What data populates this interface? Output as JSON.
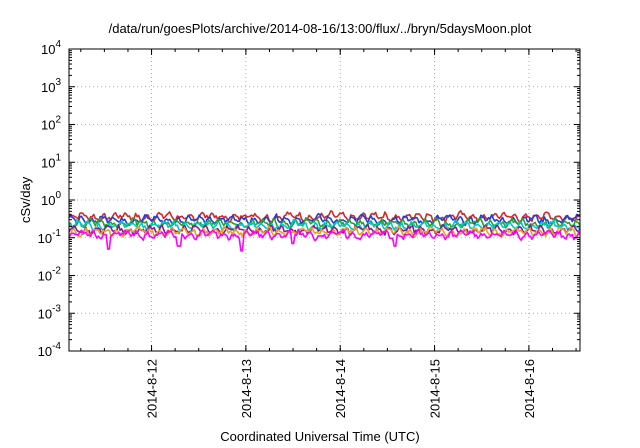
{
  "chart_data": {
    "type": "line",
    "title": "/data/run/goesPlots/archive/2014-08-16/13:00/flux/../bryn/5daysMoon.plot",
    "xlabel": "Coordinated Universal Time (UTC)",
    "ylabel": "cSv/day",
    "yscale": "log",
    "ylim": [
      0.0001,
      10000
    ],
    "y_ticks": [
      {
        "value": 0.0001,
        "mantissa": "10",
        "exp": "-4"
      },
      {
        "value": 0.001,
        "mantissa": "10",
        "exp": "-3"
      },
      {
        "value": 0.01,
        "mantissa": "10",
        "exp": "-2"
      },
      {
        "value": 0.1,
        "mantissa": "10",
        "exp": "-1"
      },
      {
        "value": 1,
        "mantissa": "10",
        "exp": "0"
      },
      {
        "value": 10,
        "mantissa": "10",
        "exp": "1"
      },
      {
        "value": 100,
        "mantissa": "10",
        "exp": "2"
      },
      {
        "value": 1000,
        "mantissa": "10",
        "exp": "3"
      },
      {
        "value": 10000,
        "mantissa": "10",
        "exp": "4"
      }
    ],
    "xlim": [
      "2014-08-11 03:00",
      "2014-08-16 13:00"
    ],
    "x_ticks": [
      "2014-8-12",
      "2014-8-13",
      "2014-8-14",
      "2014-8-15",
      "2014-8-16"
    ],
    "grid": true,
    "legend": "none",
    "series": [
      {
        "color": "#d62728",
        "level": 0.36,
        "spikes": []
      },
      {
        "color": "#1f3fd6",
        "level": 0.3,
        "spikes": []
      },
      {
        "color": "#2ca02c",
        "level": 0.24,
        "spikes": []
      },
      {
        "color": "#00c8c8",
        "level": 0.21,
        "spikes": []
      },
      {
        "color": "#8a1a8a",
        "level": 0.16,
        "spikes": []
      },
      {
        "color": "#e8a020",
        "level": 0.145,
        "spikes": []
      },
      {
        "color": "#ff00ff",
        "level": 0.12,
        "spikes": [
          {
            "date": "2014-08-11 13:00",
            "value": 0.05
          },
          {
            "date": "2014-08-12 07:00",
            "value": 0.06
          },
          {
            "date": "2014-08-12 23:00",
            "value": 0.045
          },
          {
            "date": "2014-08-13 12:00",
            "value": 0.07
          },
          {
            "date": "2014-08-14 14:00",
            "value": 0.06
          }
        ]
      }
    ]
  }
}
